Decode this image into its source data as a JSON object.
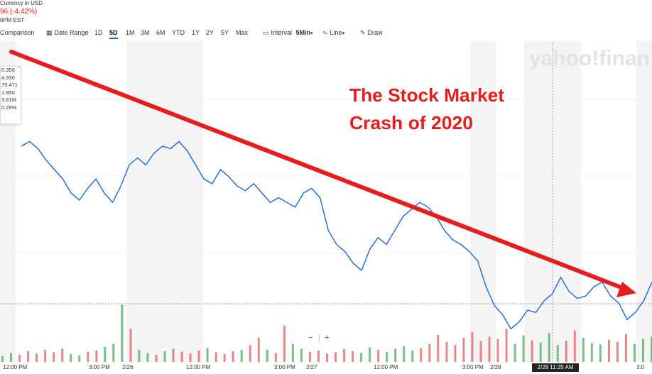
{
  "header": {
    "currency_note": "Currency in USD",
    "change_text": "96 (-4.42%)",
    "time_text": "0PM EST"
  },
  "toolbar": {
    "comparison": "Comparison",
    "date_range": "Date Range",
    "ranges": [
      "1D",
      "5D",
      "1M",
      "3M",
      "6M",
      "YTD",
      "1Y",
      "2Y",
      "5Y",
      "Max"
    ],
    "active_range": "5D",
    "interval_label": "Interval",
    "interval_value": "5Min",
    "chart_type": "Line",
    "draw": "Draw"
  },
  "tooltip": {
    "values": [
      "0.350",
      "4.930",
      "79.471",
      "1.850",
      "3.61M",
      "0.29%"
    ]
  },
  "zoom": {
    "minus": "−",
    "plus": "+"
  },
  "watermark": "yahoo!finan",
  "annotation": {
    "lines": [
      "The Stock Market",
      "Crash of 2020"
    ],
    "color": "#e41e1e"
  },
  "crosshair_label": "2/28 11:25 AM",
  "colors": {
    "price_line": "#1a67d2",
    "volume_up": "#3aa655",
    "volume_down": "#e05252",
    "arrow": "#e41e1e",
    "active_tab": "#0f69ff",
    "change_negative": "#e0201b"
  },
  "chart_data": {
    "type": "line",
    "title": "",
    "xlabel": "",
    "ylabel": "",
    "x_tick_labels": [
      "12:00 PM",
      "3:00 PM",
      "2/26",
      "12:00 PM",
      "3:00 PM",
      "2/27",
      "12:00 PM",
      "3:00 PM",
      "2/28",
      "3:0"
    ],
    "grid": true,
    "legend": "none",
    "price_series": [
      0.8,
      0.82,
      0.79,
      0.74,
      0.7,
      0.66,
      0.6,
      0.57,
      0.62,
      0.66,
      0.6,
      0.56,
      0.63,
      0.72,
      0.75,
      0.72,
      0.77,
      0.8,
      0.79,
      0.82,
      0.78,
      0.72,
      0.66,
      0.64,
      0.7,
      0.67,
      0.63,
      0.61,
      0.64,
      0.6,
      0.56,
      0.58,
      0.56,
      0.54,
      0.6,
      0.62,
      0.58,
      0.44,
      0.38,
      0.35,
      0.3,
      0.27,
      0.36,
      0.41,
      0.38,
      0.44,
      0.5,
      0.53,
      0.56,
      0.54,
      0.5,
      0.44,
      0.4,
      0.38,
      0.35,
      0.31,
      0.2,
      0.12,
      0.08,
      0.02,
      0.05,
      0.1,
      0.09,
      0.14,
      0.17,
      0.24,
      0.18,
      0.15,
      0.16,
      0.2,
      0.22,
      0.16,
      0.13,
      0.06,
      0.09,
      0.14,
      0.22
    ],
    "volume_series": [
      0.1,
      0.15,
      0.12,
      0.18,
      0.14,
      0.2,
      0.16,
      0.22,
      0.13,
      0.11,
      0.17,
      0.19,
      0.25,
      0.3,
      0.95,
      0.55,
      0.2,
      0.15,
      0.12,
      0.18,
      0.22,
      0.17,
      0.14,
      0.19,
      0.23,
      0.16,
      0.13,
      0.18,
      0.2,
      0.28,
      0.4,
      0.2,
      0.15,
      0.6,
      0.3,
      0.22,
      0.17,
      0.19,
      0.14,
      0.16,
      0.21,
      0.18,
      0.15,
      0.24,
      0.2,
      0.17,
      0.22,
      0.26,
      0.19,
      0.23,
      0.3,
      0.45,
      0.33,
      0.28,
      0.4,
      0.5,
      0.35,
      0.42,
      0.38,
      0.55,
      0.3,
      0.44,
      0.36,
      0.32,
      0.48,
      0.28,
      0.35,
      0.52,
      0.4,
      0.31,
      0.29,
      0.37,
      0.33,
      0.46,
      0.3,
      0.38,
      0.42
    ]
  }
}
